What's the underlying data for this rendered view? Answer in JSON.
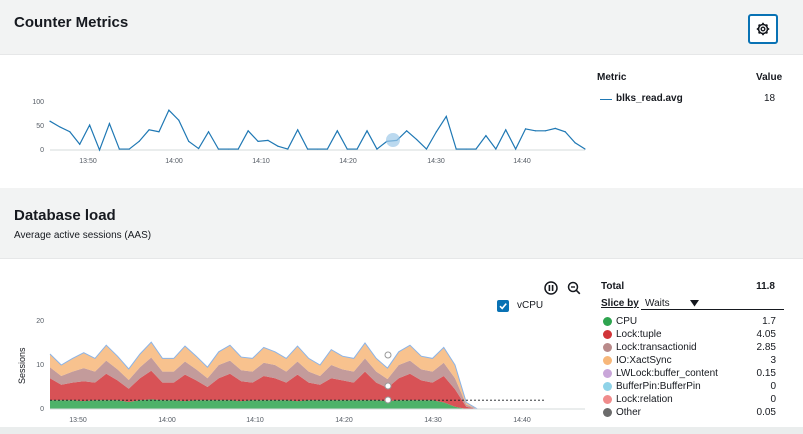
{
  "counter": {
    "title": "Counter Metrics",
    "settings_icon": "gear-icon",
    "legend_header_metric": "Metric",
    "legend_header_value": "Value",
    "legend_metric": "blks_read.avg",
    "legend_value": "18",
    "series_color": "#1f78b4"
  },
  "dbload": {
    "title": "Database load",
    "subtitle": "Average active sessions (AAS)",
    "pause_icon": "pause-icon",
    "zoom_icon": "zoom-out-icon",
    "vcpu_label": "vCPU",
    "vcpu_checked": true,
    "total_label": "Total",
    "total_value": "11.8",
    "slice_by_label": "Slice by",
    "slice_by_value": "Waits",
    "legend": [
      {
        "name": "CPU",
        "value": "1.7",
        "color": "#2ea44f"
      },
      {
        "name": "Lock:tuple",
        "value": "4.05",
        "color": "#d13438"
      },
      {
        "name": "Lock:transactionid",
        "value": "2.85",
        "color": "#b98a8a"
      },
      {
        "name": "IO:XactSync",
        "value": "3",
        "color": "#f7b77a"
      },
      {
        "name": "LWLock:buffer_content",
        "value": "0.15",
        "color": "#c9a6d9"
      },
      {
        "name": "BufferPin:BufferPin",
        "value": "0",
        "color": "#8fd3e8"
      },
      {
        "name": "Lock:relation",
        "value": "0",
        "color": "#f08c8c"
      },
      {
        "name": "Other",
        "value": "0.05",
        "color": "#6b6b6b"
      }
    ],
    "y_axis_label": "Sessions"
  },
  "chart_data": [
    {
      "type": "line",
      "title": "",
      "x_ticks": [
        "13:50",
        "14:00",
        "14:10",
        "14:20",
        "14:30",
        "14:40"
      ],
      "y_ticks": [
        "0",
        "50",
        "100"
      ],
      "ylim": [
        0,
        100
      ],
      "x": [
        0,
        1,
        2,
        3,
        4,
        5,
        6,
        7,
        8,
        9,
        10,
        11,
        12,
        13,
        14,
        15,
        16,
        17,
        18,
        19,
        20,
        21,
        22,
        23,
        24,
        25,
        26,
        27,
        28,
        29,
        30,
        31,
        32,
        33,
        34,
        35,
        36,
        37,
        38,
        39,
        40,
        41,
        42,
        43,
        44,
        45,
        46,
        47,
        48,
        49,
        50,
        51,
        52,
        53,
        54
      ],
      "series": [
        {
          "values": [
            60,
            48,
            38,
            12,
            52,
            0,
            55,
            2,
            2,
            18,
            42,
            38,
            83,
            62,
            18,
            3,
            38,
            2,
            2,
            2,
            40,
            18,
            20,
            8,
            2,
            42,
            2,
            2,
            2,
            40,
            2,
            2,
            40,
            2,
            18,
            20,
            40,
            22,
            2,
            38,
            70,
            2,
            2,
            2,
            30,
            2,
            42,
            2,
            44,
            40,
            40,
            45,
            38,
            15,
            2
          ]
        }
      ],
      "grid": false,
      "legend": "right"
    },
    {
      "type": "area",
      "x_ticks": [
        "13:50",
        "14:00",
        "14:10",
        "14:20",
        "14:30",
        "14:40"
      ],
      "y_ticks": [
        "0",
        "10",
        "20"
      ],
      "ylim": [
        0,
        20
      ],
      "ylabel": "Sessions",
      "vcpu_line": 2,
      "stacked": true,
      "series": [
        {
          "name": "CPU",
          "values": [
            2,
            2,
            2,
            1.8,
            2,
            2,
            2,
            1.6,
            2,
            2.2,
            2,
            2,
            1.8,
            2,
            2,
            2,
            2,
            1.8,
            2,
            2,
            2,
            2,
            1.8,
            2,
            2,
            2,
            2,
            2,
            2,
            2,
            1.8,
            2,
            2,
            2,
            2,
            1.5,
            0.5,
            0,
            0,
            0,
            0,
            0,
            0,
            0,
            0
          ]
        },
        {
          "name": "Lock:tuple",
          "values": [
            5,
            3.5,
            4,
            4.5,
            4,
            6,
            4.5,
            3,
            5,
            6.5,
            4,
            4,
            6,
            4.5,
            3,
            5,
            6,
            4.5,
            4,
            5.5,
            5,
            4,
            6,
            4,
            3.5,
            5,
            4.5,
            4,
            6.5,
            4,
            3,
            5,
            6,
            4.5,
            4,
            6,
            4,
            0.5,
            0,
            0,
            0,
            0,
            0,
            0,
            0
          ]
        },
        {
          "name": "Lock:transactionid",
          "values": [
            2.5,
            2,
            2.5,
            3,
            2.5,
            3,
            2.5,
            2,
            2.5,
            3,
            2.5,
            2.5,
            3,
            2.5,
            2,
            3,
            3,
            2.5,
            2.5,
            3,
            3,
            2.5,
            3,
            2.5,
            2,
            3,
            2.5,
            2.5,
            3,
            2.5,
            2,
            3,
            3,
            2.5,
            2.5,
            3,
            2.5,
            0.5,
            0,
            0,
            0,
            0,
            0,
            0,
            0
          ]
        },
        {
          "name": "IO:XactSync",
          "values": [
            3,
            2.5,
            3,
            3.5,
            3,
            3.5,
            3,
            2.5,
            3,
            3.5,
            3,
            3,
            3.5,
            3,
            2.5,
            3,
            3.5,
            3,
            3,
            3.5,
            3,
            3,
            3.5,
            3,
            2.5,
            3.5,
            3,
            3,
            3.5,
            3,
            2.5,
            3,
            3.5,
            3,
            3,
            3.5,
            3,
            0.5,
            0,
            0,
            0,
            0,
            0,
            0,
            0
          ]
        }
      ]
    }
  ]
}
